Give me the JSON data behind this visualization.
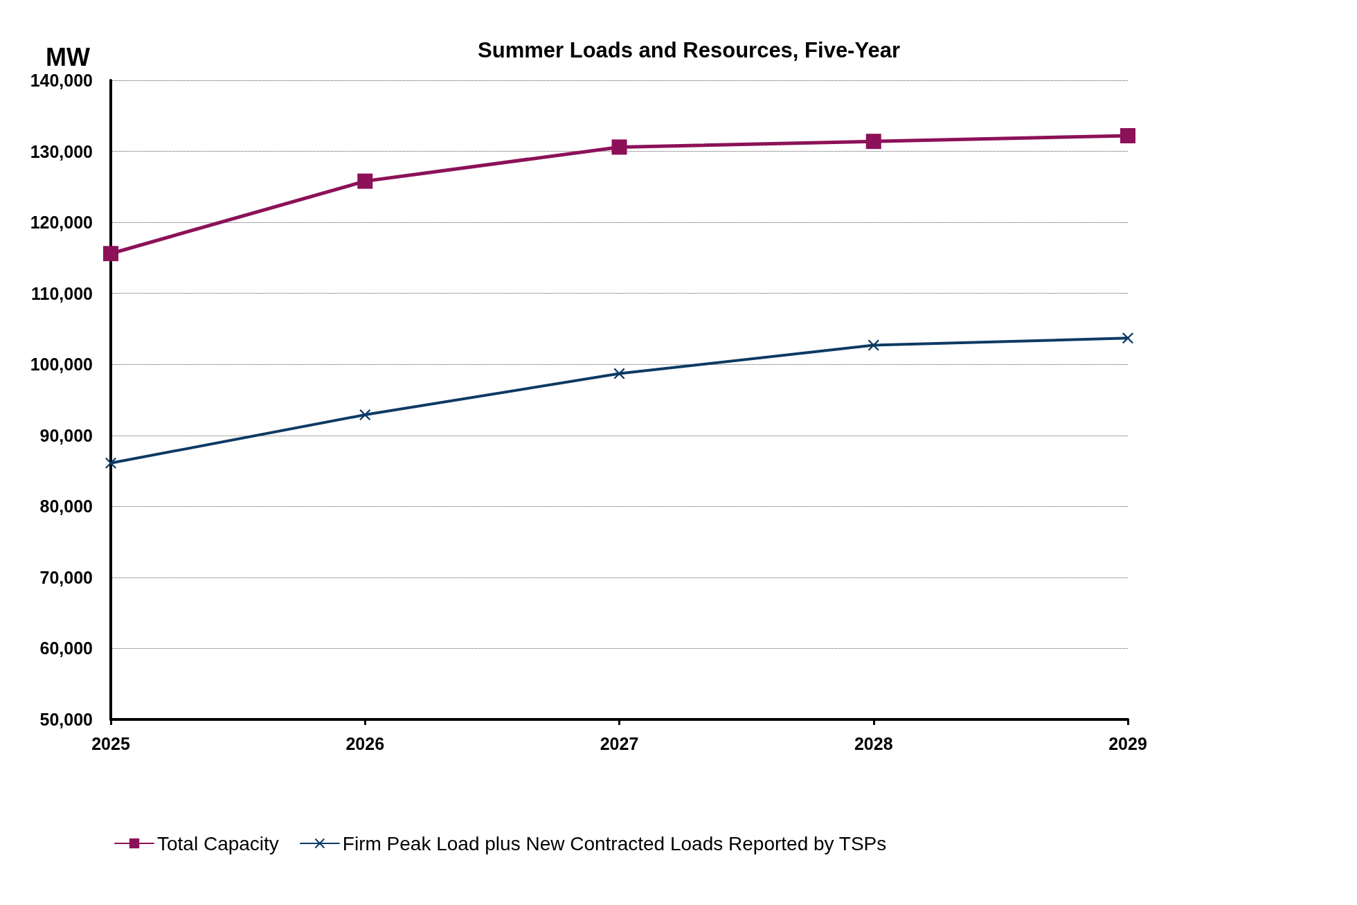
{
  "chart_data": {
    "type": "line",
    "title": "Summer Loads and Resources, Five-Year",
    "ylabel": "MW",
    "categories": [
      "2025",
      "2026",
      "2027",
      "2028",
      "2029"
    ],
    "series": [
      {
        "name": "Total Capacity",
        "color": "#8c1158",
        "marker": "square",
        "values": [
          115600,
          125800,
          130600,
          131400,
          132200
        ]
      },
      {
        "name": "Firm Peak Load plus New Contracted Loads Reported by TSPs",
        "color": "#0d3a63",
        "marker": "cross",
        "values": [
          86100,
          92900,
          98700,
          102700,
          103700
        ]
      }
    ],
    "ylim": [
      50000,
      140000
    ],
    "yticks": [
      {
        "value": 50000,
        "label": "50,000"
      },
      {
        "value": 60000,
        "label": "60,000"
      },
      {
        "value": 70000,
        "label": "70,000"
      },
      {
        "value": 80000,
        "label": "80,000"
      },
      {
        "value": 90000,
        "label": "90,000"
      },
      {
        "value": 100000,
        "label": "100,000"
      },
      {
        "value": 110000,
        "label": "110,000"
      },
      {
        "value": 120000,
        "label": "120,000"
      },
      {
        "value": 130000,
        "label": "130,000"
      },
      {
        "value": 140000,
        "label": "140,000"
      }
    ],
    "grid": "y",
    "legend": "bottom",
    "line_style": "solid"
  }
}
